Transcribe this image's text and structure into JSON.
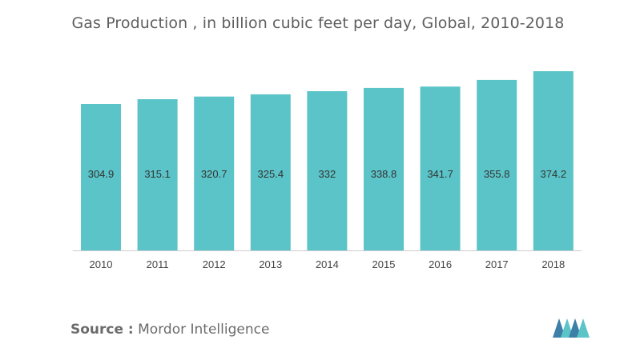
{
  "chart_data": {
    "type": "bar",
    "title": "Gas Production , in billion cubic feet per day, Global, 2010-2018",
    "categories": [
      "2010",
      "2011",
      "2012",
      "2013",
      "2014",
      "2015",
      "2016",
      "2017",
      "2018"
    ],
    "values": [
      304.9,
      315.1,
      320.7,
      325.4,
      332,
      338.8,
      341.7,
      355.8,
      374.2
    ],
    "value_labels": [
      "304.9",
      "315.1",
      "320.7",
      "325.4",
      "332",
      "338.8",
      "341.7",
      "355.8",
      "374.2"
    ],
    "xlabel": "",
    "ylabel": "",
    "ylim": [
      0,
      374.2
    ],
    "grid": false,
    "bar_color": "#5bc4c8",
    "axis_color": "#cccccc"
  },
  "source": {
    "prefix": "Source :",
    "name": "Mordor Intelligence"
  },
  "logo": {
    "icon": "mordor-intelligence-logo",
    "colors": [
      "#3d7fa6",
      "#5bc4c8"
    ]
  }
}
